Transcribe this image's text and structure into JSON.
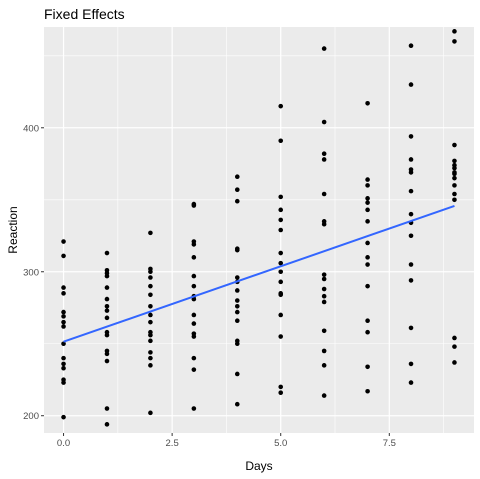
{
  "chart_data": {
    "type": "scatter",
    "title": "Fixed Effects",
    "xlabel": "Days",
    "ylabel": "Reaction",
    "xlim": [
      -0.45,
      9.45
    ],
    "ylim": [
      188,
      470
    ],
    "x_ticks": [
      0,
      2.5,
      5,
      7.5
    ],
    "x_tick_labels": [
      "0.0",
      "2.5",
      "5.0",
      "7.5"
    ],
    "y_ticks": [
      200,
      300,
      400
    ],
    "y_tick_labels": [
      "200",
      "300",
      "400"
    ],
    "grid": true,
    "panel_background": "#ebebeb",
    "grid_color": "#ffffff",
    "point_color": "#000000",
    "line_color": "#3366ff",
    "points": [
      {
        "x": 0,
        "y": [
          199,
          223,
          225,
          233,
          236,
          240,
          250,
          262,
          265,
          269,
          272,
          285,
          289,
          311,
          321
        ]
      },
      {
        "x": 1,
        "y": [
          194,
          205,
          238,
          243,
          245,
          256,
          258,
          268,
          273,
          276,
          281,
          289,
          297,
          299,
          301,
          313
        ]
      },
      {
        "x": 2,
        "y": [
          202,
          235,
          240,
          244,
          252,
          256,
          258,
          265,
          270,
          276,
          284,
          290,
          296,
          300,
          302,
          327
        ]
      },
      {
        "x": 3,
        "y": [
          205,
          232,
          240,
          255,
          257,
          264,
          270,
          281,
          283,
          290,
          297,
          310,
          319,
          321,
          346,
          347
        ]
      },
      {
        "x": 4,
        "y": [
          208,
          229,
          250,
          252,
          266,
          272,
          276,
          280,
          287,
          293,
          296,
          315,
          316,
          349,
          357,
          366
        ]
      },
      {
        "x": 5,
        "y": [
          216,
          220,
          255,
          270,
          284,
          285,
          293,
          300,
          306,
          313,
          329,
          336,
          343,
          352,
          391,
          415
        ]
      },
      {
        "x": 6,
        "y": [
          214,
          235,
          245,
          259,
          279,
          283,
          288,
          295,
          298,
          333,
          335,
          354,
          378,
          382,
          404,
          455
        ]
      },
      {
        "x": 7,
        "y": [
          217,
          234,
          258,
          266,
          290,
          305,
          310,
          320,
          335,
          343,
          348,
          351,
          360,
          364,
          417
        ]
      },
      {
        "x": 8,
        "y": [
          223,
          236,
          261,
          294,
          305,
          325,
          334,
          340,
          356,
          369,
          371,
          378,
          394,
          430,
          457
        ]
      },
      {
        "x": 9,
        "y": [
          237,
          248,
          254,
          350,
          354,
          360,
          365,
          368,
          369,
          372,
          374,
          377,
          388,
          460,
          467
        ]
      }
    ],
    "fit_line": {
      "x": [
        0,
        9
      ],
      "y": [
        251.4,
        345.7
      ]
    }
  }
}
